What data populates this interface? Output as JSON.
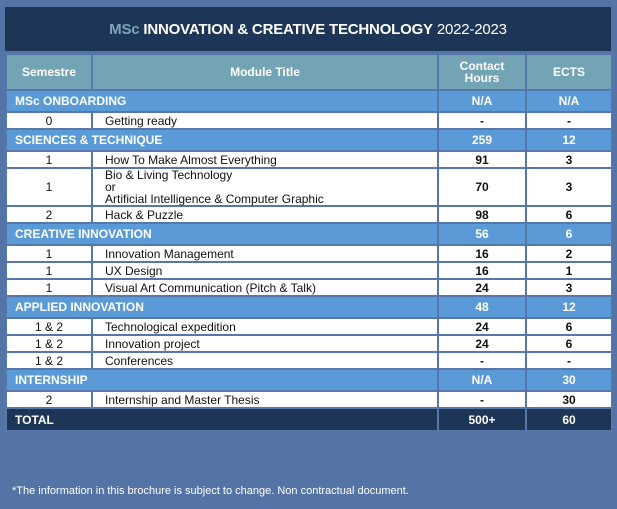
{
  "title": {
    "prefix": "MSc",
    "main": "INNOVATION & CREATIVE TECHNOLOGY",
    "year": "2022-2023"
  },
  "headers": {
    "semestre": "Semestre",
    "module": "Module Title",
    "hours": "Contact Hours",
    "ects": "ECTS"
  },
  "sections": [
    {
      "name": "MSc ONBOARDING",
      "hours": "N/A",
      "ects": "N/A",
      "rows": [
        {
          "sem": "0",
          "module": [
            "Getting ready"
          ],
          "hours": "-",
          "ects": "-"
        }
      ]
    },
    {
      "name": "SCIENCES & TECHNIQUE",
      "hours": "259",
      "ects": "12",
      "rows": [
        {
          "sem": "1",
          "module": [
            "How To Make Almost Everything"
          ],
          "hours": "91",
          "ects": "3"
        },
        {
          "sem": "1",
          "module": [
            "Bio & Living Technology",
            "or",
            "Artificial Intelligence & Computer Graphic"
          ],
          "hours": "70",
          "ects": "3"
        },
        {
          "sem": "2",
          "module": [
            "Hack & Puzzle"
          ],
          "hours": "98",
          "ects": "6"
        }
      ]
    },
    {
      "name": "CREATIVE INNOVATION",
      "hours": "56",
      "ects": "6",
      "rows": [
        {
          "sem": "1",
          "module": [
            "Innovation Management"
          ],
          "hours": "16",
          "ects": "2"
        },
        {
          "sem": "1",
          "module": [
            "UX Design"
          ],
          "hours": "16",
          "ects": "1"
        },
        {
          "sem": "1",
          "module": [
            "Visual Art Communication (Pitch & Talk)"
          ],
          "hours": "24",
          "ects": "3"
        }
      ]
    },
    {
      "name": "APPLIED INNOVATION",
      "hours": "48",
      "ects": "12",
      "rows": [
        {
          "sem": "1 & 2",
          "module": [
            "Technological expedition"
          ],
          "hours": "24",
          "ects": "6"
        },
        {
          "sem": "1 & 2",
          "module": [
            "Innovation project"
          ],
          "hours": "24",
          "ects": "6"
        },
        {
          "sem": "1 & 2",
          "module": [
            "Conferences"
          ],
          "hours": "-",
          "ects": "-"
        }
      ]
    },
    {
      "name": "INTERNSHIP",
      "hours": "N/A",
      "ects": "30",
      "rows": [
        {
          "sem": "2",
          "module": [
            "Internship and Master Thesis"
          ],
          "hours": "-",
          "ects": "30"
        }
      ]
    }
  ],
  "total": {
    "label": "TOTAL",
    "hours": "500+",
    "ects": "60"
  },
  "footnote": "*The information in this brochure is subject to change. Non contractual document.",
  "colors": {
    "background": "#5474a6",
    "title_bg": "#1d3657",
    "header_bg": "#73a4b5",
    "section_bg": "#5a9bd7"
  }
}
